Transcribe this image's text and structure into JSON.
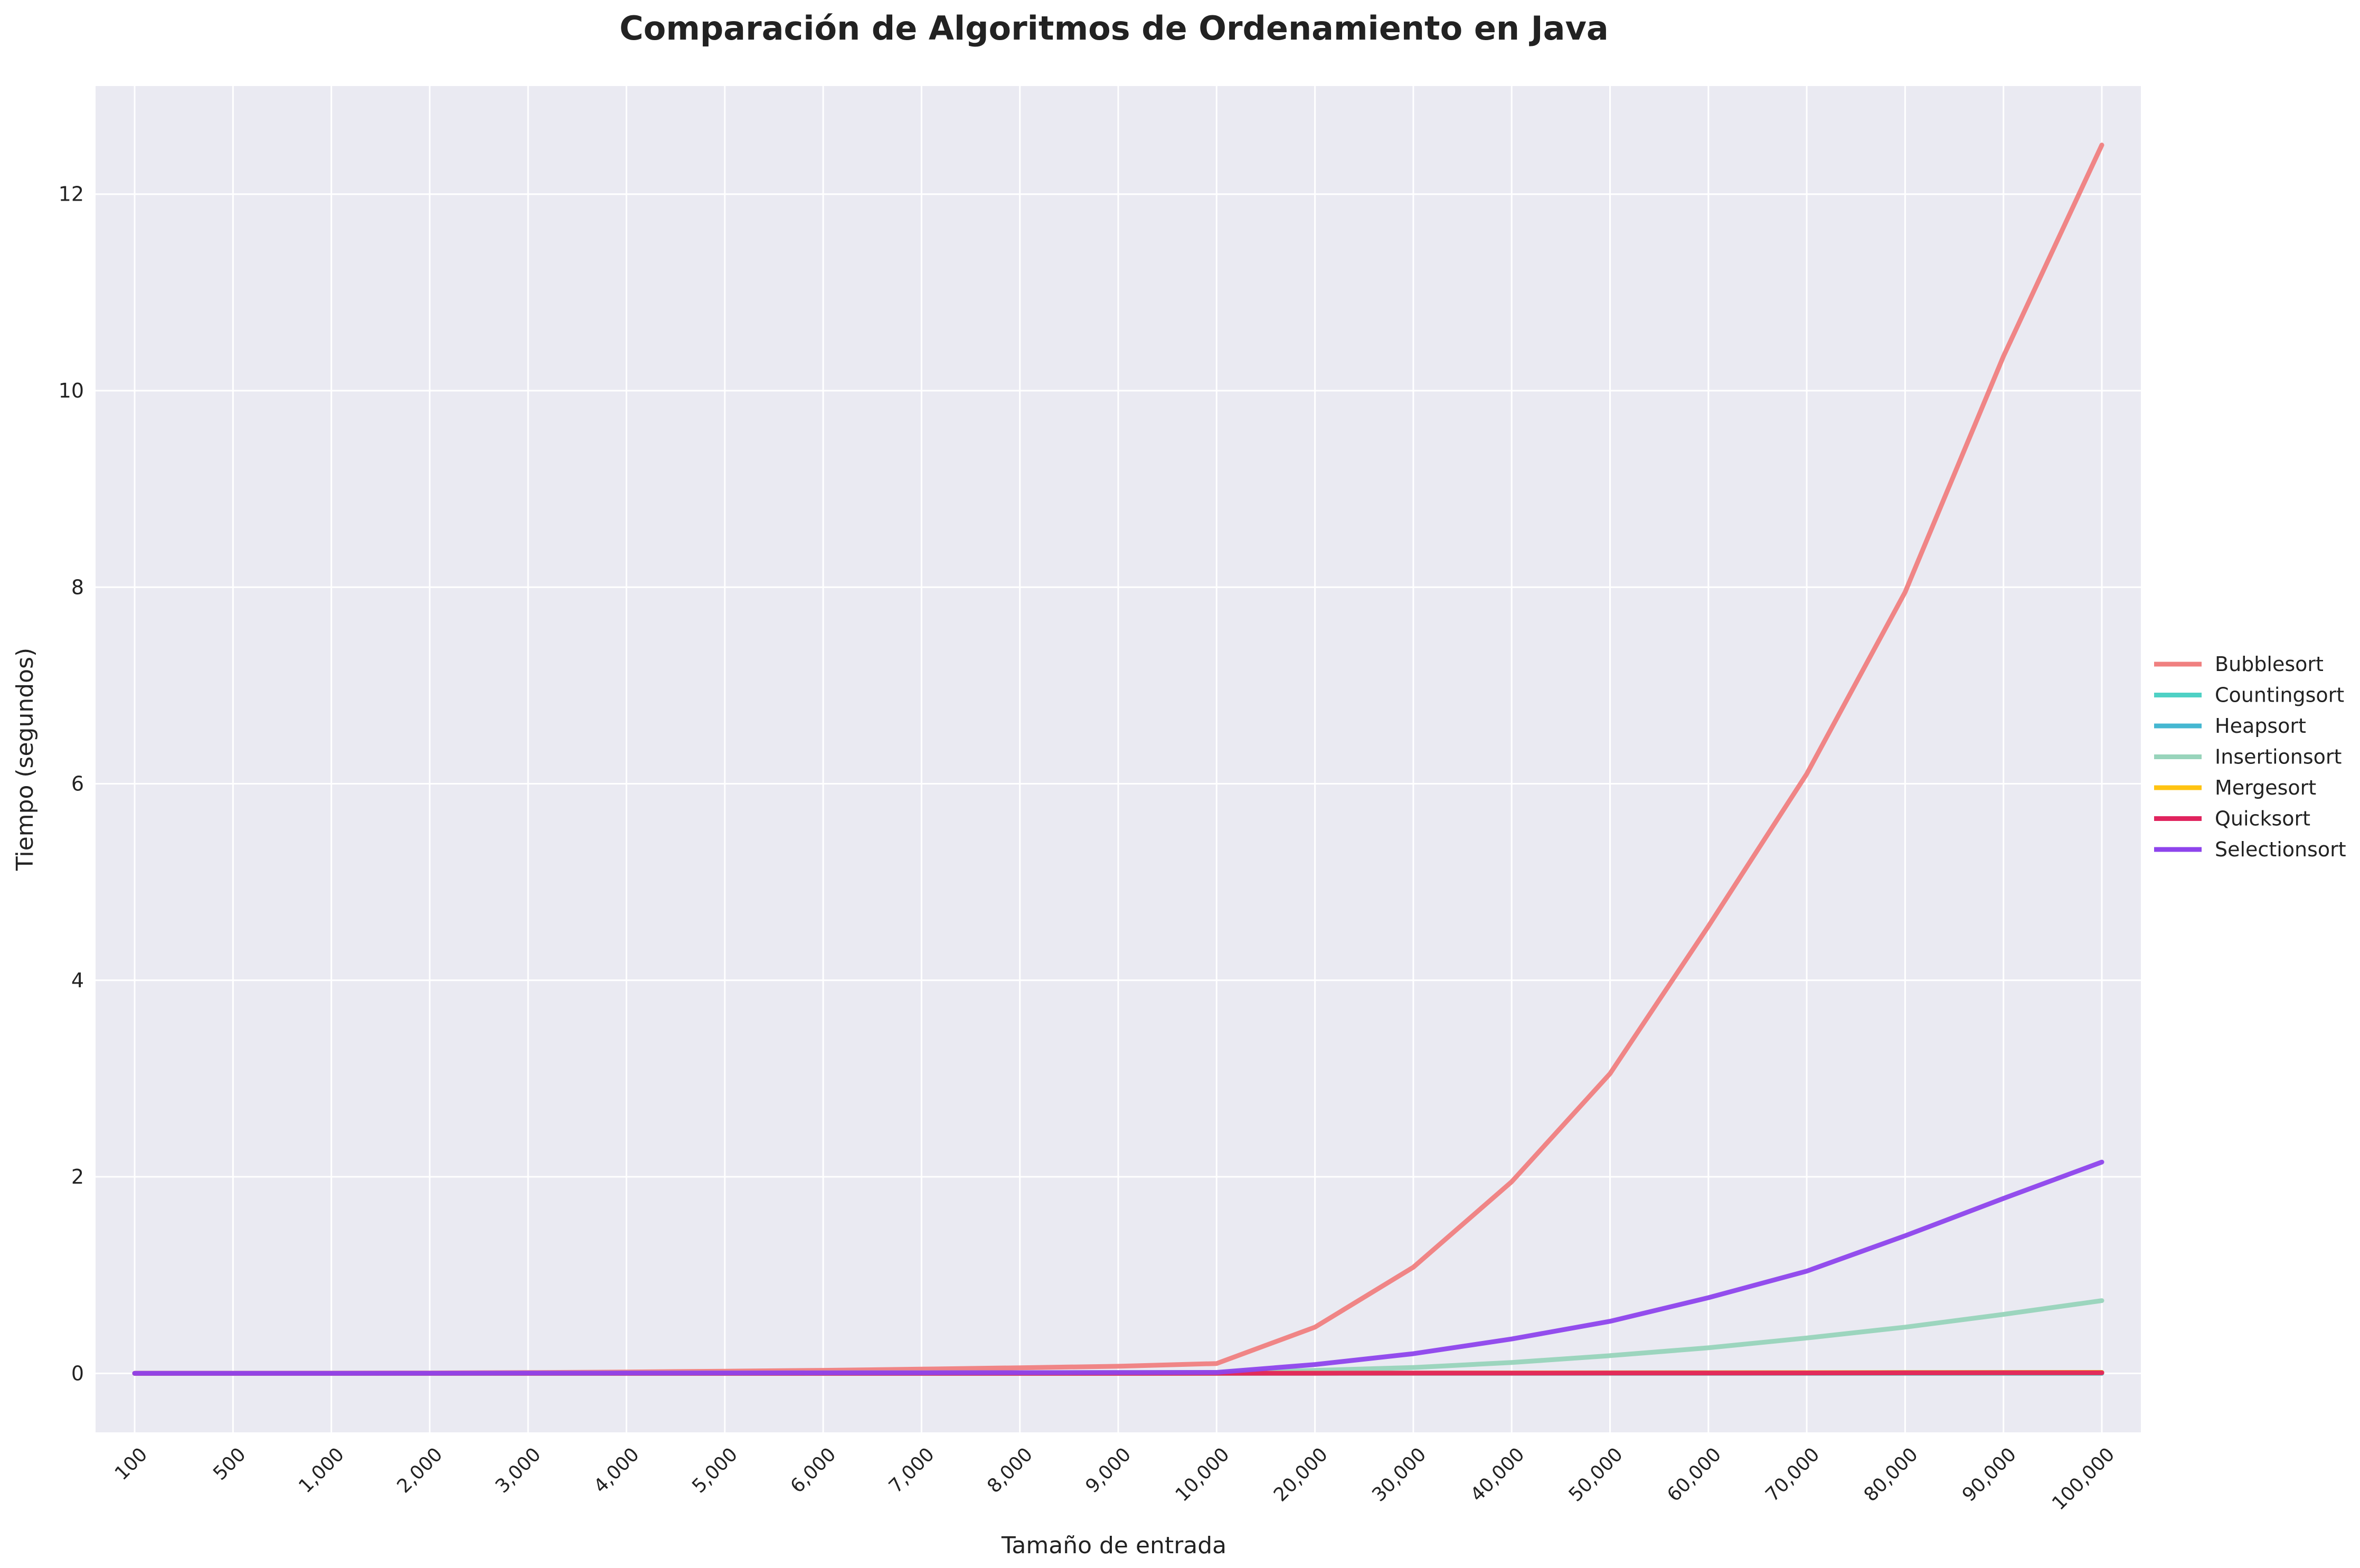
{
  "chart_data": {
    "type": "line",
    "title": "Comparación de Algoritmos de Ordenamiento en Java",
    "xlabel": "Tamaño de entrada",
    "ylabel": "Tiempo (segundos)",
    "x_scale": "categorical",
    "categories": [
      "100",
      "500",
      "1,000",
      "2,000",
      "3,000",
      "4,000",
      "5,000",
      "6,000",
      "7,000",
      "8,000",
      "9,000",
      "10,000",
      "20,000",
      "30,000",
      "40,000",
      "50,000",
      "60,000",
      "70,000",
      "80,000",
      "90,000",
      "100,000"
    ],
    "ylim": [
      -0.6,
      13.1
    ],
    "yticks": [
      0,
      2,
      4,
      6,
      8,
      10,
      12
    ],
    "grid": true,
    "legend_position": "center-right",
    "background_color": "#eaeaf2",
    "grid_color": "#ffffff",
    "series": [
      {
        "name": "Bubblesort",
        "color": "#f08080",
        "values": [
          0.0,
          0.001,
          0.002,
          0.004,
          0.008,
          0.014,
          0.022,
          0.031,
          0.043,
          0.057,
          0.072,
          0.1,
          0.47,
          1.08,
          1.95,
          3.05,
          4.55,
          6.1,
          7.95,
          10.35,
          12.5
        ]
      },
      {
        "name": "Countingsort",
        "color": "#4fd1c5",
        "values": [
          0.0,
          0.0,
          0.0,
          0.0,
          0.0,
          0.0,
          0.0,
          0.0,
          0.0,
          0.0,
          0.0,
          0.0,
          0.0,
          0.0,
          0.0,
          0.0,
          0.0,
          0.0,
          0.0,
          0.0,
          0.0
        ]
      },
      {
        "name": "Heapsort",
        "color": "#45b7d1",
        "values": [
          0.0,
          0.0,
          0.0,
          0.0,
          0.0,
          0.0,
          0.0,
          0.0,
          0.0,
          0.0,
          0.001,
          0.001,
          0.002,
          0.003,
          0.004,
          0.005,
          0.006,
          0.007,
          0.008,
          0.009,
          0.01
        ]
      },
      {
        "name": "Insertionsort",
        "color": "#98d4bb",
        "values": [
          0.0,
          0.0,
          0.0,
          0.001,
          0.002,
          0.003,
          0.004,
          0.005,
          0.006,
          0.007,
          0.008,
          0.01,
          0.03,
          0.06,
          0.11,
          0.18,
          0.26,
          0.36,
          0.47,
          0.6,
          0.74
        ]
      },
      {
        "name": "Mergesort",
        "color": "#ffc312",
        "values": [
          0.0,
          0.0,
          0.0,
          0.0,
          0.0,
          0.0,
          0.0,
          0.0,
          0.0,
          0.0,
          0.001,
          0.001,
          0.002,
          0.003,
          0.004,
          0.005,
          0.006,
          0.007,
          0.008,
          0.009,
          0.01
        ]
      },
      {
        "name": "Quicksort",
        "color": "#e0245e",
        "values": [
          0.0,
          0.0,
          0.0,
          0.0,
          0.0,
          0.0,
          0.0,
          0.0,
          0.0,
          0.0,
          0.0,
          0.001,
          0.001,
          0.002,
          0.002,
          0.003,
          0.003,
          0.004,
          0.005,
          0.006,
          0.006
        ]
      },
      {
        "name": "Selectionsort",
        "color": "#8e44ec",
        "values": [
          0.0,
          0.0,
          0.0,
          0.001,
          0.002,
          0.003,
          0.004,
          0.005,
          0.006,
          0.007,
          0.008,
          0.01,
          0.09,
          0.2,
          0.35,
          0.53,
          0.77,
          1.04,
          1.4,
          1.78,
          2.15
        ]
      }
    ]
  }
}
